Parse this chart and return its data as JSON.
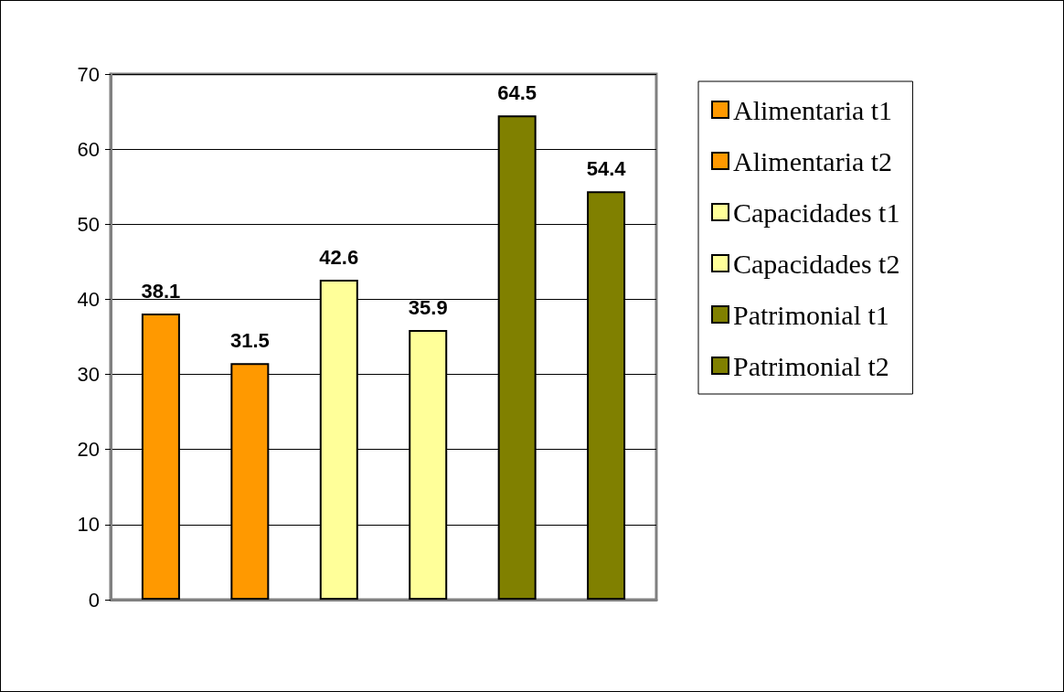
{
  "chart_data": {
    "type": "bar",
    "categories": [
      null
    ],
    "series": [
      {
        "name": "Alimentaria t1",
        "color": "#ff9900",
        "values": [
          38.1
        ]
      },
      {
        "name": "Alimentaria t2",
        "color": "#ff9900",
        "values": [
          31.5
        ]
      },
      {
        "name": "Capacidades t1",
        "color": "#ffff99",
        "values": [
          42.6
        ]
      },
      {
        "name": "Capacidades t2",
        "color": "#ffff99",
        "values": [
          35.9
        ]
      },
      {
        "name": "Patrimonial t1",
        "color": "#808000",
        "values": [
          64.5
        ]
      },
      {
        "name": "Patrimonial t2",
        "color": "#808000",
        "values": [
          54.4
        ]
      }
    ],
    "ylim": [
      0,
      70
    ],
    "yticks": [
      0,
      10,
      20,
      30,
      40,
      50,
      60,
      70
    ],
    "grid": "y",
    "legend": "right",
    "data_labels": true
  }
}
